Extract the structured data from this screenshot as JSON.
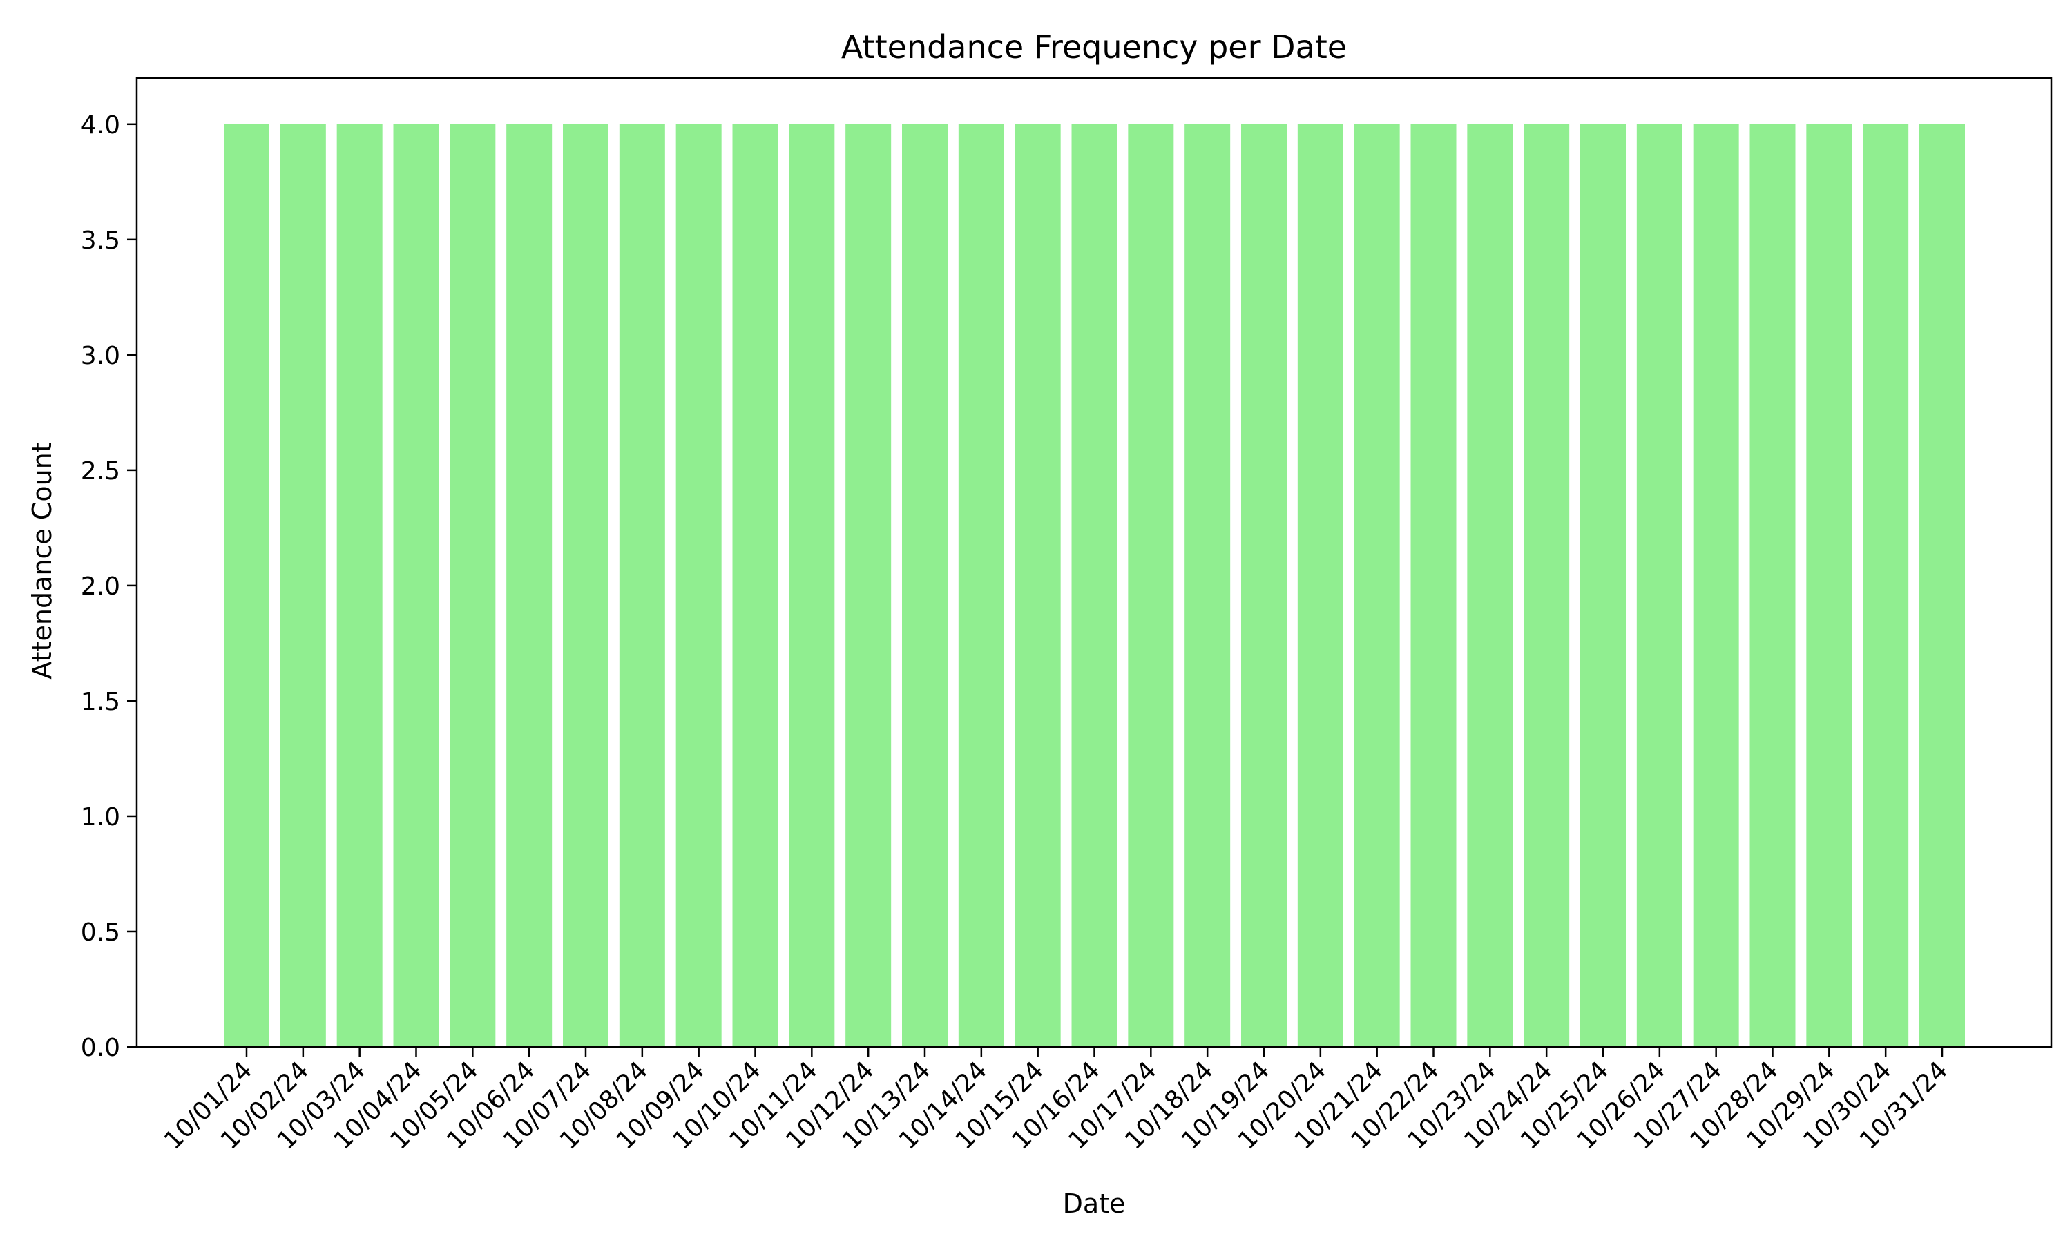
{
  "chart_data": {
    "type": "bar",
    "title": "Attendance Frequency per Date",
    "xlabel": "Date",
    "ylabel": "Attendance Count",
    "categories": [
      "10/01/24",
      "10/02/24",
      "10/03/24",
      "10/04/24",
      "10/05/24",
      "10/06/24",
      "10/07/24",
      "10/08/24",
      "10/09/24",
      "10/10/24",
      "10/11/24",
      "10/12/24",
      "10/13/24",
      "10/14/24",
      "10/15/24",
      "10/16/24",
      "10/17/24",
      "10/18/24",
      "10/19/24",
      "10/20/24",
      "10/21/24",
      "10/22/24",
      "10/23/24",
      "10/24/24",
      "10/25/24",
      "10/26/24",
      "10/27/24",
      "10/28/24",
      "10/29/24",
      "10/30/24",
      "10/31/24"
    ],
    "values": [
      4,
      4,
      4,
      4,
      4,
      4,
      4,
      4,
      4,
      4,
      4,
      4,
      4,
      4,
      4,
      4,
      4,
      4,
      4,
      4,
      4,
      4,
      4,
      4,
      4,
      4,
      4,
      4,
      4,
      4,
      4
    ],
    "ylim": [
      0,
      4.2
    ],
    "yticks": [
      "0.0",
      "0.5",
      "1.0",
      "1.5",
      "2.0",
      "2.5",
      "3.0",
      "3.5",
      "4.0"
    ],
    "grid": false,
    "bar_color": "#90ee90",
    "axis_color": "#000000"
  }
}
